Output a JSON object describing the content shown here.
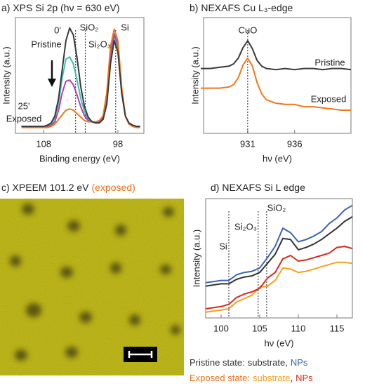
{
  "chart_data": [
    {
      "type": "line",
      "title": "a) XPS Si 2p (hν = 630 eV)",
      "xlabel": "Binding energy (eV)",
      "ylabel": "Intensity (a.u.)",
      "x": [
        111,
        110.5,
        110,
        109.5,
        109,
        108.5,
        108,
        107.5,
        107,
        106.5,
        106,
        105.5,
        105,
        104.5,
        104,
        103.5,
        103,
        102.5,
        102,
        101.5,
        101,
        100.5,
        100,
        99.5,
        99,
        98.5,
        98,
        97.5,
        97,
        96.5,
        96,
        95.5,
        95
      ],
      "series": [
        {
          "color": "#3fc0b8",
          "values": [
            0.6,
            0.6,
            0.6,
            0.6,
            0.6,
            0.6,
            0.6,
            0.7,
            0.8,
            1.3,
            2.6,
            4.8,
            6.4,
            6.6,
            6.0,
            4.6,
            3.0,
            1.9,
            1.2,
            1.0,
            0.9,
            1.0,
            1.3,
            2.8,
            6.6,
            8.3,
            7.3,
            3.6,
            1.5,
            0.8,
            0.6,
            0.6,
            0.6
          ]
        },
        {
          "color": "#b040b0",
          "values": [
            0.6,
            0.6,
            0.6,
            0.6,
            0.6,
            0.6,
            0.6,
            0.6,
            0.7,
            1.0,
            2.0,
            3.5,
            4.5,
            4.6,
            4.2,
            3.3,
            2.3,
            1.5,
            1.1,
            1.0,
            1.0,
            1.0,
            1.3,
            3.0,
            7.0,
            8.6,
            7.6,
            3.8,
            1.5,
            0.8,
            0.6,
            0.6,
            0.6
          ]
        },
        {
          "color": "#f07818",
          "values": [
            0.5,
            0.5,
            0.5,
            0.5,
            0.5,
            0.5,
            0.5,
            0.5,
            0.6,
            0.8,
            1.2,
            1.6,
            2.0,
            2.1,
            2.0,
            1.7,
            1.4,
            1.1,
            1.0,
            1.0,
            1.0,
            1.1,
            1.5,
            3.5,
            7.5,
            9.0,
            8.0,
            4.0,
            1.5,
            0.8,
            0.6,
            0.5,
            0.5
          ]
        },
        {
          "color": "#3a3a3a",
          "values": [
            0.6,
            0.6,
            0.6,
            0.6,
            0.6,
            0.6,
            0.6,
            0.7,
            0.9,
            1.5,
            3.0,
            5.5,
            8.0,
            9.1,
            8.5,
            6.5,
            4.0,
            2.3,
            1.4,
            1.0,
            0.9,
            0.9,
            1.2,
            2.5,
            6.0,
            8.0,
            7.0,
            3.5,
            1.5,
            0.9,
            0.7,
            0.6,
            0.6
          ]
        }
      ],
      "xlim": [
        111.8,
        94.5
      ],
      "ylim": [
        0,
        10
      ],
      "xticks": [
        108,
        98
      ],
      "vlines": [
        103.7,
        102.4,
        98.3
      ],
      "annotations": [
        {
          "text": "0'",
          "color": "#222222"
        },
        {
          "text": "Pristine",
          "color": "#222222"
        },
        {
          "text": "SiO₂",
          "color": "#222222"
        },
        {
          "text": "Si₂O₃",
          "color": "#222222"
        },
        {
          "text": "Si",
          "color": "#222222"
        },
        {
          "text": "25'",
          "color": "#f07818"
        },
        {
          "text": "Exposed",
          "color": "#f07818"
        }
      ]
    },
    {
      "type": "line",
      "title": "b) NEXAFS Cu L₃-edge",
      "xlabel": "hν (eV)",
      "ylabel": "Intensity (a.u.)",
      "x": [
        926,
        927,
        928,
        929,
        929.5,
        930,
        930.5,
        931,
        931.5,
        932,
        932.5,
        933,
        934,
        935,
        936,
        937,
        938,
        939,
        940,
        941,
        942
      ],
      "series": [
        {
          "color": "#3a3a3a",
          "values": [
            5.6,
            5.6,
            5.7,
            5.8,
            6.0,
            6.5,
            7.4,
            8.0,
            7.3,
            6.3,
            5.8,
            5.6,
            5.5,
            5.6,
            5.5,
            5.6,
            5.6,
            5.5,
            5.6,
            5.6,
            5.5
          ]
        },
        {
          "color": "#f07818",
          "values": [
            3.9,
            3.9,
            3.9,
            4.0,
            4.2,
            4.8,
            5.9,
            6.5,
            5.8,
            4.4,
            3.4,
            2.9,
            2.6,
            2.5,
            2.5,
            2.3,
            2.3,
            2.2,
            2.1,
            2.0,
            2.0
          ]
        }
      ],
      "xlim": [
        926.3,
        942
      ],
      "ylim": [
        0,
        10
      ],
      "xticks": [
        931,
        936
      ],
      "vlines": [
        931
      ],
      "annotations": [
        {
          "text": "CuO",
          "color": "#222222"
        },
        {
          "text": "Pristine",
          "color": "#3a3a3a"
        },
        {
          "text": "Exposed",
          "color": "#f07818"
        }
      ]
    },
    {
      "type": "image",
      "title": "c) XPEEM 101.2 eV",
      "title_note": "(exposed)",
      "title_note_color": "#e8701a"
    },
    {
      "type": "line",
      "title": "d) NEXAFS Si L edge",
      "xlabel": "hν (eV)",
      "ylabel": "Intensity (a.u.)",
      "x": [
        98,
        99,
        100,
        101,
        102,
        103,
        104,
        105,
        106,
        107,
        108,
        109,
        110,
        111,
        112,
        113,
        114,
        115,
        116,
        117
      ],
      "series": [
        {
          "name": "substrate",
          "color": "#333333",
          "values": [
            2.8,
            2.9,
            3.0,
            3.0,
            3.4,
            3.6,
            3.7,
            4.0,
            4.8,
            5.6,
            7.0,
            6.9,
            6.0,
            6.2,
            6.5,
            6.9,
            7.4,
            7.9,
            8.5,
            8.9
          ]
        },
        {
          "name": "NPs",
          "color": "#3a63b8",
          "values": [
            3.1,
            3.2,
            3.3,
            3.3,
            3.8,
            4.0,
            4.1,
            4.4,
            5.3,
            6.3,
            7.9,
            7.5,
            6.7,
            6.9,
            7.2,
            7.6,
            8.3,
            8.8,
            9.5,
            9.9
          ]
        },
        {
          "name": "substrate",
          "color": "#f5a020",
          "values": [
            0.5,
            0.6,
            0.7,
            0.8,
            1.4,
            1.7,
            2.0,
            2.7,
            2.8,
            3.3,
            4.4,
            4.3,
            4.0,
            4.1,
            4.3,
            4.5,
            4.7,
            4.9,
            4.9,
            4.8
          ]
        },
        {
          "name": "NPs",
          "color": "#d42a1a",
          "values": [
            0.8,
            0.9,
            1.0,
            1.2,
            1.8,
            2.1,
            2.3,
            2.6,
            3.5,
            4.0,
            5.2,
            5.5,
            5.0,
            5.1,
            5.3,
            5.5,
            5.7,
            6.2,
            6.3,
            6.1
          ]
        }
      ],
      "xlim": [
        98,
        117
      ],
      "ylim": [
        0,
        10.5
      ],
      "xticks": [
        100,
        105,
        110,
        115
      ],
      "vlines": [
        101,
        104.8,
        105.9
      ],
      "annotations": [
        {
          "text": "Si",
          "color": "#222222"
        },
        {
          "text": "Si₂O₃",
          "color": "#222222"
        },
        {
          "text": "SiO₂",
          "color": "#222222"
        }
      ],
      "legend_rows": [
        {
          "label": "Pristine state:",
          "color": "#333333"
        },
        {
          "label": "Exposed state:",
          "color": "#e8701a"
        }
      ],
      "legend_separator": ","
    }
  ]
}
